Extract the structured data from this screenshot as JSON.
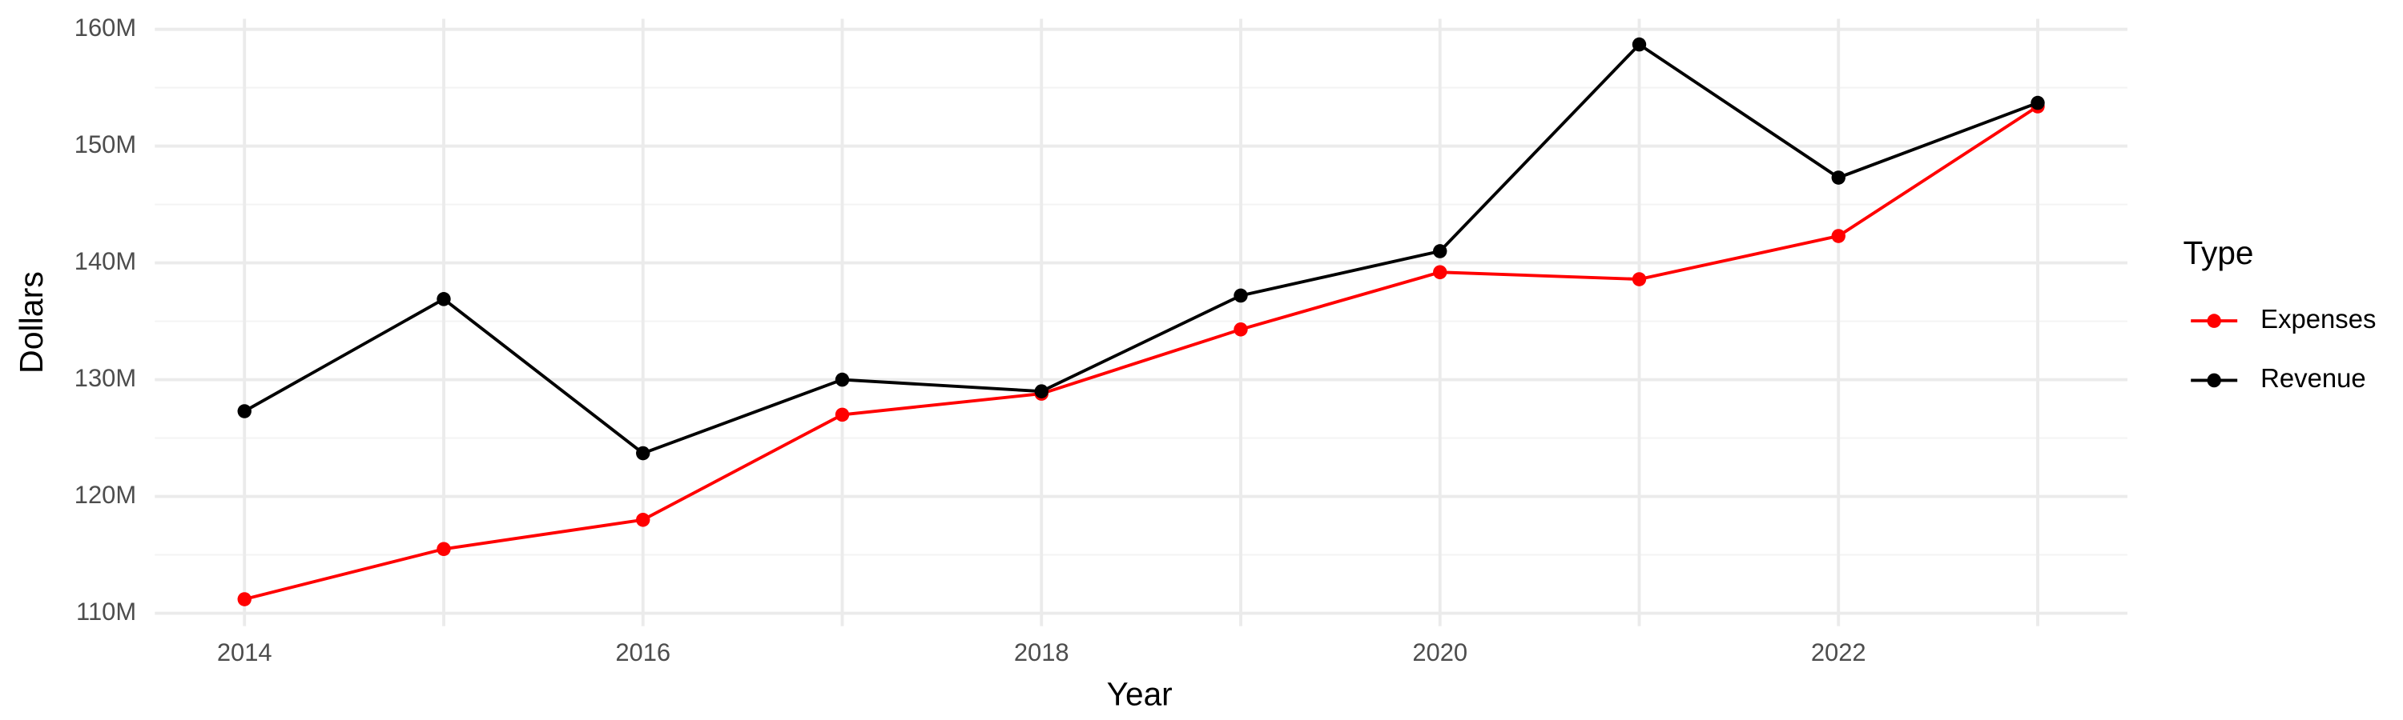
{
  "chart_data": {
    "type": "line",
    "x_label": "Year",
    "y_label": "Dollars",
    "x": [
      2014,
      2015,
      2016,
      2017,
      2018,
      2019,
      2020,
      2021,
      2022,
      2023
    ],
    "series": [
      {
        "name": "Expenses",
        "color": "#ff0000",
        "values": [
          111200000,
          115500000,
          118000000,
          127000000,
          128800000,
          134300000,
          139200000,
          138600000,
          142300000,
          153400000
        ]
      },
      {
        "name": "Revenue",
        "color": "#000000",
        "values": [
          127300000,
          136900000,
          123700000,
          130000000,
          129000000,
          137200000,
          141000000,
          158700000,
          147300000,
          153700000
        ]
      }
    ],
    "xlim": [
      2013.55,
      2023.45
    ],
    "ylim": [
      108900000,
      160900000
    ],
    "xticks": [
      2014,
      2016,
      2018,
      2020,
      2022
    ],
    "yticks": [
      {
        "value": 110000000,
        "label": "110M"
      },
      {
        "value": 120000000,
        "label": "120M"
      },
      {
        "value": 130000000,
        "label": "130M"
      },
      {
        "value": 140000000,
        "label": "140M"
      },
      {
        "value": 150000000,
        "label": "150M"
      },
      {
        "value": 160000000,
        "label": "160M"
      }
    ],
    "grid": true,
    "legend_title": "Type",
    "legend_position": "right"
  }
}
